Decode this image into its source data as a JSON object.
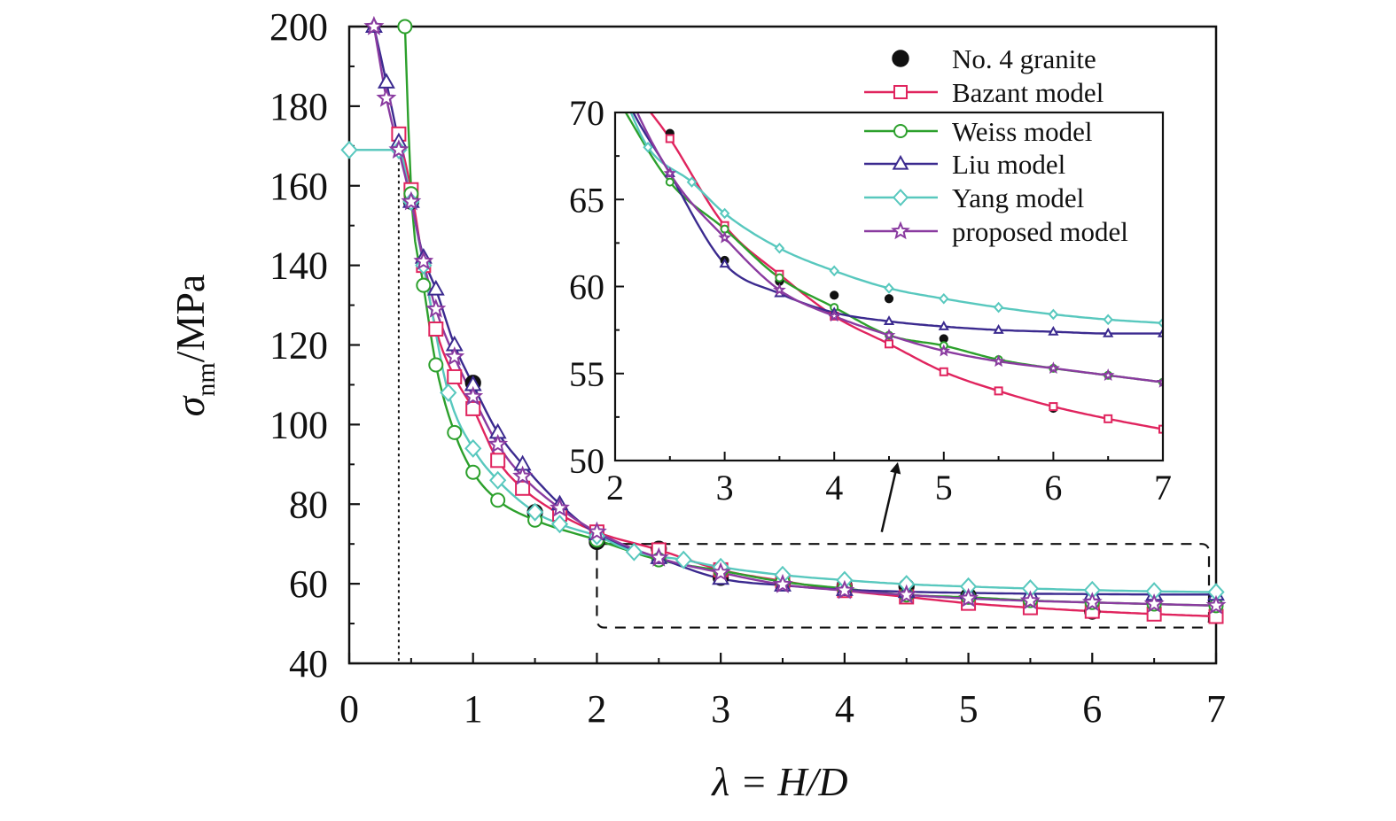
{
  "chart_data": [
    {
      "type": "line",
      "xlabel": "λ = H/D",
      "ylabel": "σ_nm/MPa",
      "ylabel_main": "σ",
      "ylabel_sub": "nm",
      "ylabel_unit": "/MPa",
      "xlim": [
        0,
        7
      ],
      "ylim": [
        40,
        200
      ],
      "x_ticks": [
        "0",
        "1",
        "2",
        "3",
        "4",
        "5",
        "6",
        "7"
      ],
      "y_ticks": [
        "40",
        "60",
        "80",
        "100",
        "120",
        "140",
        "160",
        "180",
        "200"
      ],
      "legend_position": "top-right",
      "grid": false,
      "annotations": [
        "dotted guide line at λ = 0.4",
        "horizontal guide at σ = 169",
        "dashed box marking the region 2 ≤ λ ≤ 7, 49 ≤ σ ≤ 70, zoomed in the inset"
      ],
      "series": [
        {
          "name": "No. 4 granite",
          "marker": "filled-circle",
          "color": "#111111",
          "x": [
            0.5,
            1.0,
            1.5,
            2.0,
            2.5,
            3.0,
            3.5,
            4.0,
            4.5,
            5.0,
            6.0
          ],
          "y": [
            156,
            110.5,
            78,
            70.5,
            68.8,
            61.5,
            60.3,
            59.5,
            59.3,
            57.0,
            53.0
          ]
        },
        {
          "name": "Bazant model",
          "marker": "open-square",
          "color": "#e0245e",
          "x": [
            0.4,
            0.5,
            0.6,
            0.7,
            0.85,
            1.0,
            1.2,
            1.4,
            1.7,
            2.0,
            2.5,
            3.0,
            3.5,
            4.0,
            4.5,
            5.0,
            5.5,
            6.0,
            6.5,
            7.0
          ],
          "y": [
            173,
            159,
            140,
            124,
            112,
            104,
            91,
            84,
            77.5,
            73,
            68.5,
            63.5,
            60.7,
            58.3,
            56.7,
            55.1,
            54.0,
            53.1,
            52.4,
            51.8
          ]
        },
        {
          "name": "Weiss model",
          "marker": "open-circle",
          "color": "#2ca02c",
          "x": [
            0.45,
            0.5,
            0.6,
            0.7,
            0.85,
            1.0,
            1.2,
            1.5,
            2.0,
            2.5,
            3.0,
            3.5,
            4.0,
            4.5,
            5.0,
            5.5,
            6.0,
            6.5,
            7.0
          ],
          "y": [
            200,
            158,
            135,
            115,
            98,
            88,
            81,
            76,
            71,
            66,
            63.3,
            60.5,
            58.8,
            57.2,
            56.6,
            55.8,
            55.3,
            54.9,
            54.5
          ]
        },
        {
          "name": "Liu model",
          "marker": "open-triangle",
          "color": "#3b2a8f",
          "x": [
            0.2,
            0.3,
            0.4,
            0.5,
            0.6,
            0.7,
            0.85,
            1.0,
            1.2,
            1.4,
            1.7,
            2.0,
            2.5,
            3.0,
            3.5,
            4.0,
            4.5,
            5.0,
            5.5,
            6.0,
            6.5,
            7.0
          ],
          "y": [
            200,
            186,
            171,
            156,
            142,
            134,
            120,
            110,
            98,
            90,
            80,
            72.5,
            66.5,
            61.3,
            59.6,
            58.5,
            58.0,
            57.7,
            57.5,
            57.4,
            57.3,
            57.3
          ]
        },
        {
          "name": "Yang model",
          "marker": "open-diamond",
          "color": "#58c8be",
          "x": [
            0.0,
            0.4,
            0.5,
            0.6,
            0.8,
            1.0,
            1.2,
            1.5,
            1.7,
            2.0,
            2.3,
            2.7,
            3.0,
            3.5,
            4.0,
            4.5,
            5.0,
            5.5,
            6.0,
            6.5,
            7.0
          ],
          "y": [
            169,
            169,
            156,
            140,
            108,
            94,
            86,
            78,
            75,
            72,
            68,
            66,
            64.2,
            62.2,
            60.9,
            59.9,
            59.3,
            58.8,
            58.4,
            58.1,
            57.9
          ]
        },
        {
          "name": "proposed model",
          "marker": "open-star",
          "color": "#8a3ba0",
          "x": [
            0.2,
            0.3,
            0.4,
            0.5,
            0.6,
            0.7,
            0.85,
            1.0,
            1.2,
            1.4,
            1.7,
            2.0,
            2.5,
            3.0,
            3.5,
            4.0,
            4.5,
            5.0,
            5.5,
            6.0,
            6.5,
            7.0
          ],
          "y": [
            200,
            182,
            169,
            156,
            141,
            129,
            117,
            107,
            95,
            87,
            79,
            73,
            66.5,
            62.8,
            59.8,
            58.3,
            57.2,
            56.3,
            55.7,
            55.3,
            54.9,
            54.5
          ]
        }
      ]
    },
    {
      "type": "line",
      "inset": true,
      "xlim": [
        2,
        7
      ],
      "ylim": [
        50,
        70
      ],
      "x_ticks": [
        "2",
        "3",
        "4",
        "5",
        "6",
        "7"
      ],
      "y_ticks": [
        "50",
        "55",
        "60",
        "65",
        "70"
      ],
      "annotations": [
        "arrow pointing from the dashed box in the main plot up to the inset"
      ]
    }
  ]
}
